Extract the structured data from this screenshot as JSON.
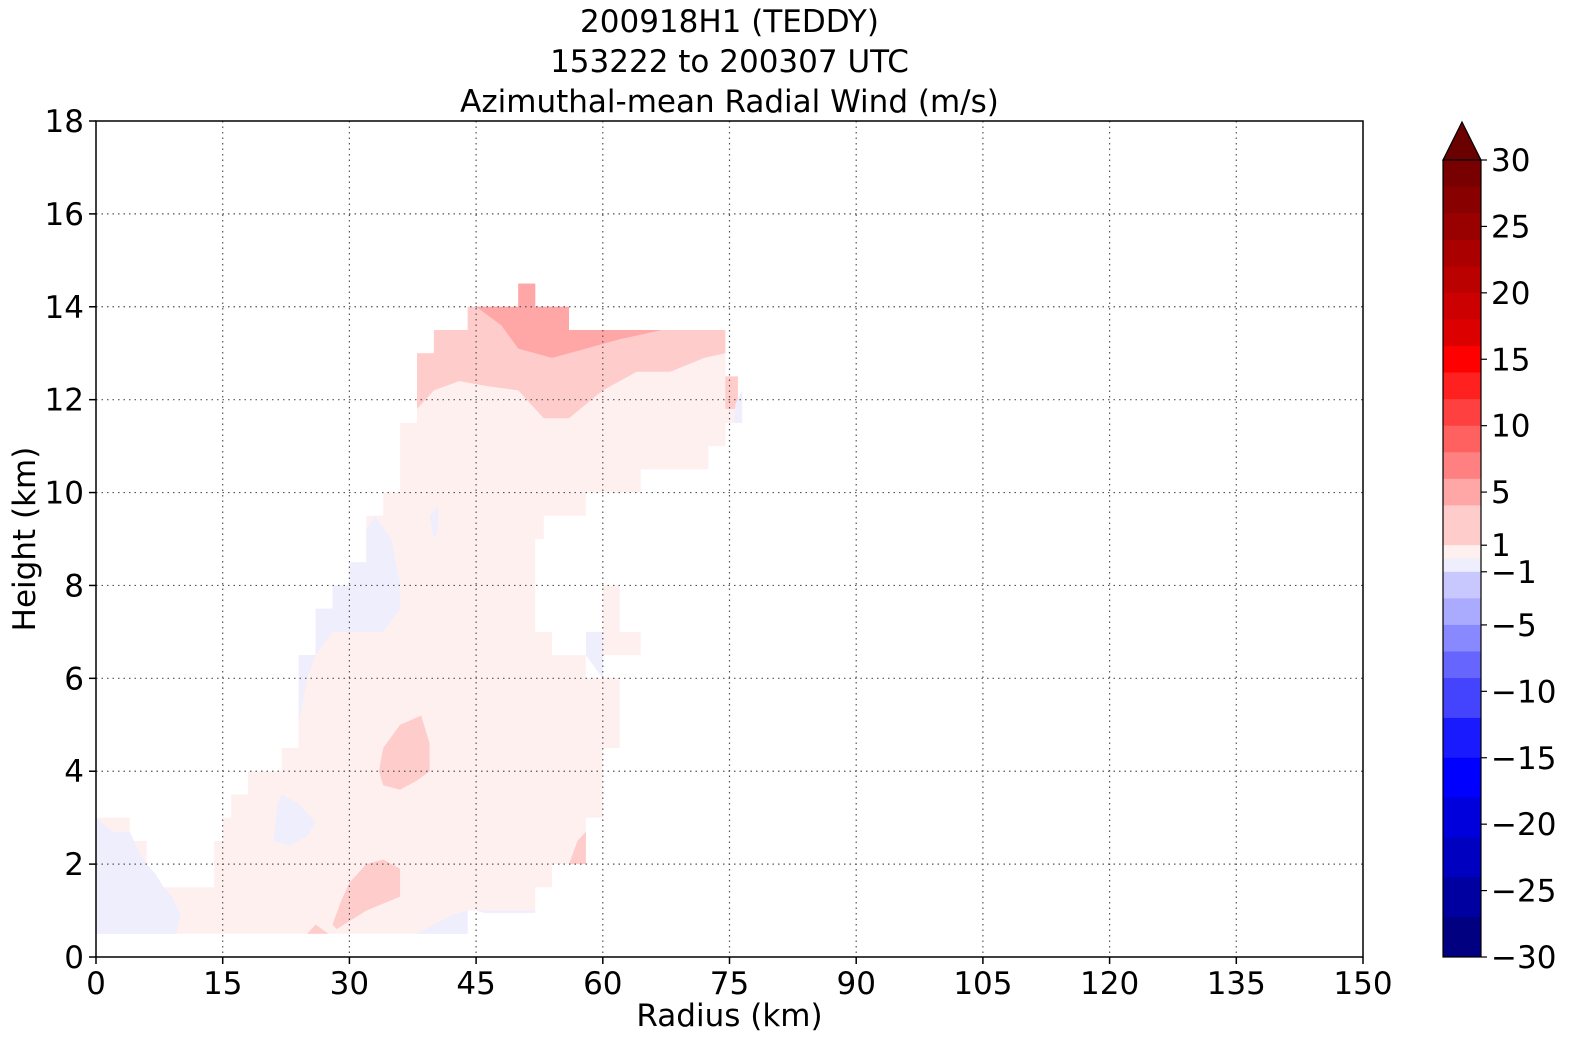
{
  "chart_data": {
    "type": "heatmap",
    "title_lines": [
      "200918H1 (TEDDY)",
      "153222 to 200307 UTC",
      "Azimuthal-mean Radial Wind (m/s)"
    ],
    "xlabel": "Radius (km)",
    "ylabel": "Height (km)",
    "xlim": [
      0,
      150
    ],
    "ylim": [
      0,
      18
    ],
    "xticks": [
      "0",
      "15",
      "30",
      "45",
      "60",
      "75",
      "90",
      "105",
      "120",
      "135",
      "150"
    ],
    "yticks": [
      "0",
      "2",
      "4",
      "6",
      "8",
      "10",
      "12",
      "14",
      "16",
      "18"
    ],
    "grid": true,
    "colorbar": {
      "vmin": -30,
      "vmax": 30,
      "extend": "max",
      "tick_labels": [
        {
          "label": "30",
          "value": 30
        },
        {
          "label": "25",
          "value": 25
        },
        {
          "label": "20",
          "value": 20
        },
        {
          "label": "15",
          "value": 15
        },
        {
          "label": "10",
          "value": 10
        },
        {
          "label": "5",
          "value": 5
        },
        {
          "label": "1",
          "value": 1
        },
        {
          "label": "−1",
          "value": -1
        },
        {
          "label": "−5",
          "value": -5
        },
        {
          "label": "−10",
          "value": -10
        },
        {
          "label": "−15",
          "value": -15
        },
        {
          "label": "−20",
          "value": -20
        },
        {
          "label": "−25",
          "value": -25
        },
        {
          "label": "−30",
          "value": -30
        }
      ],
      "bands": [
        {
          "from": 28,
          "to": 30,
          "color": "#780000"
        },
        {
          "from": 26,
          "to": 28,
          "color": "#880000"
        },
        {
          "from": 24,
          "to": 26,
          "color": "#990000"
        },
        {
          "from": 22,
          "to": 24,
          "color": "#aa0000"
        },
        {
          "from": 20,
          "to": 22,
          "color": "#bb0000"
        },
        {
          "from": 18,
          "to": 20,
          "color": "#cc0000"
        },
        {
          "from": 16,
          "to": 18,
          "color": "#dd0000"
        },
        {
          "from": 14,
          "to": 16,
          "color": "#ff0000"
        },
        {
          "from": 12,
          "to": 14,
          "color": "#ff2020"
        },
        {
          "from": 10,
          "to": 12,
          "color": "#ff4040"
        },
        {
          "from": 8,
          "to": 10,
          "color": "#ff6060"
        },
        {
          "from": 6,
          "to": 8,
          "color": "#ff8080"
        },
        {
          "from": 4,
          "to": 6,
          "color": "#ffa6a6"
        },
        {
          "from": 1,
          "to": 4,
          "color": "#ffcccc"
        },
        {
          "from": 0,
          "to": 1,
          "color": "#fff0f0"
        },
        {
          "from": -1,
          "to": 0,
          "color": "#eeeefd"
        },
        {
          "from": -3,
          "to": -1,
          "color": "#c8c8ff"
        },
        {
          "from": -5,
          "to": -3,
          "color": "#aaaaff"
        },
        {
          "from": -7,
          "to": -5,
          "color": "#8888ff"
        },
        {
          "from": -9,
          "to": -7,
          "color": "#6666ff"
        },
        {
          "from": -12,
          "to": -9,
          "color": "#4444ff"
        },
        {
          "from": -15,
          "to": -12,
          "color": "#1a1aff"
        },
        {
          "from": -18,
          "to": -15,
          "color": "#0000ff"
        },
        {
          "from": -21,
          "to": -18,
          "color": "#0000dd"
        },
        {
          "from": -24,
          "to": -21,
          "color": "#0000c0"
        },
        {
          "from": -27,
          "to": -24,
          "color": "#0000a0"
        },
        {
          "from": -30,
          "to": -27,
          "color": "#000080"
        }
      ],
      "extend_color": "#6a0000"
    },
    "regions": [
      {
        "name": "weak-outflow-main",
        "value_range": "0 to 1",
        "color": "#fff0f0",
        "polygon": [
          [
            0,
            0.5
          ],
          [
            0,
            3
          ],
          [
            4,
            3
          ],
          [
            4,
            2.5
          ],
          [
            6,
            2.5
          ],
          [
            6,
            2
          ],
          [
            8,
            1.5
          ],
          [
            14,
            1.5
          ],
          [
            14,
            2.5
          ],
          [
            15,
            2.5
          ],
          [
            15,
            3
          ],
          [
            16,
            3
          ],
          [
            16,
            3.5
          ],
          [
            18,
            3.5
          ],
          [
            18,
            4
          ],
          [
            22,
            4
          ],
          [
            22,
            4.5
          ],
          [
            24,
            4.5
          ],
          [
            24,
            6.5
          ],
          [
            26,
            6.5
          ],
          [
            26,
            7.5
          ],
          [
            28,
            7.5
          ],
          [
            28,
            8
          ],
          [
            32,
            8
          ],
          [
            32,
            9.5
          ],
          [
            34,
            9.5
          ],
          [
            34,
            10
          ],
          [
            36,
            10
          ],
          [
            36,
            11.5
          ],
          [
            38,
            11.5
          ],
          [
            38,
            13
          ],
          [
            40,
            13
          ],
          [
            40,
            13.5
          ],
          [
            44,
            13.5
          ],
          [
            44,
            14
          ],
          [
            56,
            14
          ],
          [
            56,
            13.5
          ],
          [
            74.5,
            13.5
          ],
          [
            74.5,
            12.5
          ],
          [
            76,
            12.5
          ],
          [
            76,
            11.5
          ],
          [
            74.5,
            11.5
          ],
          [
            74.5,
            11
          ],
          [
            72.5,
            11
          ],
          [
            72.5,
            10.5
          ],
          [
            64.5,
            10.5
          ],
          [
            64.5,
            10
          ],
          [
            58,
            10
          ],
          [
            58,
            9.5
          ],
          [
            53,
            9.5
          ],
          [
            53,
            9
          ],
          [
            52,
            9
          ],
          [
            52,
            7
          ],
          [
            54,
            7
          ],
          [
            54,
            6.5
          ],
          [
            58,
            6.5
          ],
          [
            58,
            6
          ],
          [
            62,
            6
          ],
          [
            62,
            4.5
          ],
          [
            60,
            4.5
          ],
          [
            60,
            3
          ],
          [
            58,
            3
          ],
          [
            58,
            2
          ],
          [
            54,
            2
          ],
          [
            54,
            1.5
          ],
          [
            52,
            1.5
          ],
          [
            52,
            1
          ],
          [
            44,
            1
          ],
          [
            44,
            0.5
          ]
        ]
      },
      {
        "name": "weak-outflow-upper-right",
        "value_range": "0 to 1",
        "color": "#fff0f0",
        "polygon": [
          [
            60,
            8
          ],
          [
            62,
            8
          ],
          [
            62,
            7
          ],
          [
            64.5,
            7
          ],
          [
            64.5,
            6.5
          ],
          [
            60,
            6.5
          ]
        ]
      },
      {
        "name": "moderate-outflow-upper",
        "value_range": "1 to 4",
        "color": "#ffcccc",
        "polygon": [
          [
            38,
            11.8
          ],
          [
            40,
            12.2
          ],
          [
            43,
            12.4
          ],
          [
            46,
            12.3
          ],
          [
            50,
            12.2
          ],
          [
            53,
            11.6
          ],
          [
            56,
            11.6
          ],
          [
            60,
            12.2
          ],
          [
            64,
            12.6
          ],
          [
            68,
            12.6
          ],
          [
            72,
            12.9
          ],
          [
            74.5,
            13
          ],
          [
            74.5,
            13.5
          ],
          [
            56,
            13.5
          ],
          [
            56,
            14
          ],
          [
            44,
            14
          ],
          [
            44,
            13.5
          ],
          [
            40,
            13.5
          ],
          [
            40,
            13
          ],
          [
            38,
            13
          ]
        ]
      },
      {
        "name": "moderate-outflow-far-right",
        "value_range": "1 to 4",
        "color": "#ffcccc",
        "polygon": [
          [
            74.5,
            12.5
          ],
          [
            76,
            12.5
          ],
          [
            76,
            11.8
          ],
          [
            74.5,
            11.8
          ]
        ]
      },
      {
        "name": "moderate-outflow-upper-core",
        "value_range": "4 to 6",
        "color": "#ffa6a6",
        "polygon": [
          [
            45,
            14
          ],
          [
            52,
            14
          ],
          [
            52,
            14.5
          ],
          [
            50,
            14.5
          ],
          [
            50,
            14
          ],
          [
            56,
            14
          ],
          [
            56,
            13.5
          ],
          [
            67,
            13.5
          ],
          [
            62,
            13.3
          ],
          [
            58,
            13.1
          ],
          [
            54,
            12.9
          ],
          [
            50,
            13.1
          ],
          [
            48,
            13.6
          ]
        ]
      },
      {
        "name": "moderate-outflow-top-spike",
        "value_range": "4 to 6",
        "color": "#ffa6a6",
        "polygon": [
          [
            50,
            14
          ],
          [
            52,
            14
          ],
          [
            52,
            14.5
          ],
          [
            50,
            14.5
          ]
        ]
      },
      {
        "name": "mid-level-blob",
        "value_range": "1 to 4",
        "color": "#ffcccc",
        "polygon": [
          [
            33.5,
            4
          ],
          [
            34,
            4.5
          ],
          [
            36,
            5
          ],
          [
            38.5,
            5.2
          ],
          [
            39.5,
            4.6
          ],
          [
            39.5,
            4
          ],
          [
            38,
            3.8
          ],
          [
            36,
            3.6
          ],
          [
            34,
            3.7
          ]
        ]
      },
      {
        "name": "low-level-blob",
        "value_range": "1 to 4",
        "color": "#ffcccc",
        "polygon": [
          [
            28,
            0.7
          ],
          [
            29,
            1.2
          ],
          [
            30,
            1.6
          ],
          [
            32,
            2
          ],
          [
            34,
            2.1
          ],
          [
            36,
            1.9
          ],
          [
            36,
            1.3
          ],
          [
            32,
            1
          ],
          [
            28.5,
            0.6
          ]
        ]
      },
      {
        "name": "low-level-tip",
        "value_range": "1 to 4",
        "color": "#ffcccc",
        "polygon": [
          [
            25,
            0.5
          ],
          [
            26,
            0.7
          ],
          [
            27.5,
            0.5
          ]
        ]
      },
      {
        "name": "near-surface-right-sliver",
        "value_range": "1 to 4",
        "color": "#ffcccc",
        "polygon": [
          [
            56,
            2
          ],
          [
            58,
            2
          ],
          [
            58,
            2.7
          ],
          [
            57,
            2.5
          ]
        ]
      },
      {
        "name": "inflow-boundary-layer",
        "value_range": "-1 to 0",
        "color": "#eeeefd",
        "polygon": [
          [
            0,
            0.5
          ],
          [
            0,
            3
          ],
          [
            2,
            2.7
          ],
          [
            4,
            2.7
          ],
          [
            5,
            2.3
          ],
          [
            6,
            2
          ],
          [
            7,
            1.8
          ],
          [
            8,
            1.5
          ],
          [
            9,
            1.3
          ],
          [
            10,
            0.9
          ],
          [
            9.5,
            0.5
          ]
        ]
      },
      {
        "name": "inflow-pocket-low",
        "value_range": "-1 to 0",
        "color": "#eeeefd",
        "polygon": [
          [
            21,
            2.5
          ],
          [
            21.5,
            3.3
          ],
          [
            22,
            3.5
          ],
          [
            24,
            3.3
          ],
          [
            26,
            2.9
          ],
          [
            25,
            2.6
          ],
          [
            23,
            2.4
          ]
        ]
      },
      {
        "name": "inflow-mid-left",
        "value_range": "-1 to 0",
        "color": "#eeeefd",
        "polygon": [
          [
            24,
            6.5
          ],
          [
            26,
            6.5
          ],
          [
            26,
            7.5
          ],
          [
            28,
            7.5
          ],
          [
            28,
            8
          ],
          [
            30,
            8
          ],
          [
            30,
            8.5
          ],
          [
            32,
            8.5
          ],
          [
            32,
            9.2
          ],
          [
            33,
            9.5
          ],
          [
            35,
            9
          ],
          [
            36,
            8
          ],
          [
            36,
            7.5
          ],
          [
            34,
            7
          ],
          [
            32,
            7
          ],
          [
            28,
            7
          ],
          [
            26,
            6.5
          ],
          [
            25,
            6
          ],
          [
            24,
            5
          ]
        ]
      },
      {
        "name": "inflow-sliver-40",
        "value_range": "-1 to 0",
        "color": "#eeeefd",
        "polygon": [
          [
            39.5,
            9.5
          ],
          [
            40.5,
            9.7
          ],
          [
            40.5,
            9.2
          ],
          [
            40,
            9
          ]
        ]
      },
      {
        "name": "inflow-sliver-59",
        "value_range": "-1 to 0",
        "color": "#eeeefd",
        "polygon": [
          [
            58,
            6.5
          ],
          [
            58,
            7
          ],
          [
            60,
            7
          ],
          [
            60,
            6
          ]
        ]
      },
      {
        "name": "inflow-sliver-76",
        "value_range": "-1 to 0",
        "color": "#eeeefd",
        "polygon": [
          [
            75.5,
            11.5
          ],
          [
            76.5,
            11.5
          ],
          [
            76.5,
            12.2
          ],
          [
            75.7,
            11.9
          ]
        ]
      },
      {
        "name": "inflow-surface-45",
        "value_range": "-1 to 0",
        "color": "#eeeefd",
        "polygon": [
          [
            38,
            0.5
          ],
          [
            44,
            0.5
          ],
          [
            44,
            1
          ],
          [
            42,
            0.9
          ],
          [
            40,
            0.7
          ]
        ]
      },
      {
        "name": "inflow-surface-50",
        "value_range": "-1 to 0",
        "color": "#eeeefd",
        "polygon": [
          [
            45,
            1
          ],
          [
            52,
            1
          ],
          [
            52,
            0.95
          ],
          [
            46,
            0.95
          ]
        ]
      }
    ]
  }
}
